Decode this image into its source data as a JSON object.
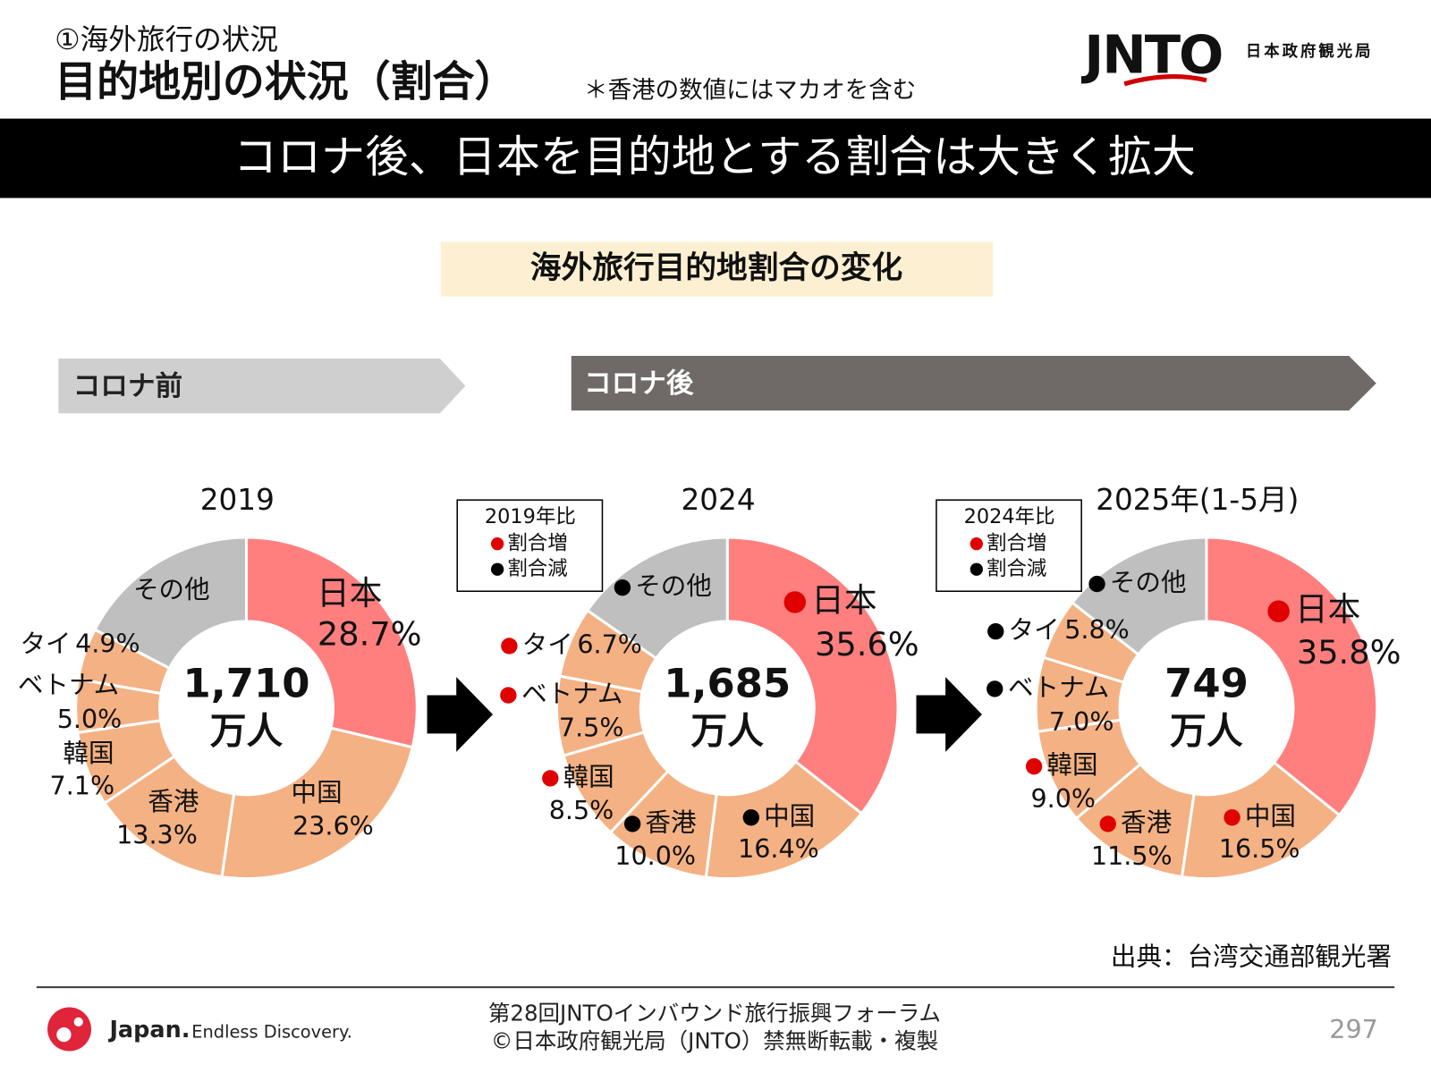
{
  "header": {
    "section": "①海外旅行の状況",
    "title": "目的地別の状況（割合）",
    "note": "＊香港の数値にはマカオを含む",
    "logo_text": "JNTO",
    "logo_subtext": "日本政府観光局"
  },
  "banner": "コロナ後、日本を目的地とする割合は大きく拡大",
  "subtitle": "海外旅行目的地割合の変化",
  "period_labels": [
    "コロナ前",
    "コロナ後"
  ],
  "chart_data": [
    {
      "type": "pie",
      "title": "2019",
      "categories": [
        "日本",
        "中国",
        "香港",
        "韓国",
        "ベトナム",
        "タイ",
        "その他"
      ],
      "values": [
        28.7,
        23.6,
        13.3,
        7.1,
        5.0,
        4.9,
        17.4
      ],
      "value_labels": [
        "28.7%",
        "23.6%",
        "13.3%",
        "7.1%",
        "5.0%",
        "4.9%",
        null
      ],
      "colors": [
        "#ff7f7f",
        "#f4b183",
        "#f4b183",
        "#f4b183",
        "#f4b183",
        "#f4b183",
        "#bfbfbf"
      ],
      "center_label": [
        "1,710",
        "万人"
      ]
    },
    {
      "type": "pie",
      "title": "2024",
      "categories": [
        "日本",
        "中国",
        "香港",
        "韓国",
        "ベトナム",
        "タイ",
        "その他"
      ],
      "values": [
        35.6,
        16.4,
        10.0,
        8.5,
        7.5,
        6.7,
        15.3
      ],
      "value_labels": [
        "35.6%",
        "16.4%",
        "10.0%",
        "8.5%",
        "7.5%",
        "6.7%",
        null
      ],
      "colors": [
        "#ff7f7f",
        "#f4b183",
        "#f4b183",
        "#f4b183",
        "#f4b183",
        "#f4b183",
        "#bfbfbf"
      ],
      "marker_colors": [
        "#e00000",
        "#000000",
        "#000000",
        "#e00000",
        "#e00000",
        "#e00000",
        "#000000"
      ],
      "center_label": [
        "1,685",
        "万人"
      ],
      "legend": {
        "title": "2019年比",
        "items": [
          {
            "label": "割合増",
            "color": "#e00000"
          },
          {
            "label": "割合減",
            "color": "#000000"
          }
        ]
      }
    },
    {
      "type": "pie",
      "title": "2025年(1-5月)",
      "categories": [
        "日本",
        "中国",
        "香港",
        "韓国",
        "ベトナム",
        "タイ",
        "その他"
      ],
      "values": [
        35.8,
        16.5,
        11.5,
        9.0,
        7.0,
        5.8,
        14.4
      ],
      "value_labels": [
        "35.8%",
        "16.5%",
        "11.5%",
        "9.0%",
        "7.0%",
        "5.8%",
        null
      ],
      "colors": [
        "#ff7f7f",
        "#f4b183",
        "#f4b183",
        "#f4b183",
        "#f4b183",
        "#f4b183",
        "#bfbfbf"
      ],
      "marker_colors": [
        "#e00000",
        "#e00000",
        "#e00000",
        "#e00000",
        "#000000",
        "#000000",
        "#000000"
      ],
      "center_label": [
        "749",
        "万人"
      ],
      "legend": {
        "title": "2024年比",
        "items": [
          {
            "label": "割合増",
            "color": "#e00000"
          },
          {
            "label": "割合減",
            "color": "#000000"
          }
        ]
      }
    }
  ],
  "source": "出典：台湾交通部観光署",
  "footer": {
    "brand": "Japan.",
    "tagline": "Endless Discovery.",
    "lines": [
      "第28回JNTOインバウンド旅行振興フォーラム",
      "©日本政府観光局（JNTO）禁無断転載・複製"
    ],
    "page": 297
  }
}
